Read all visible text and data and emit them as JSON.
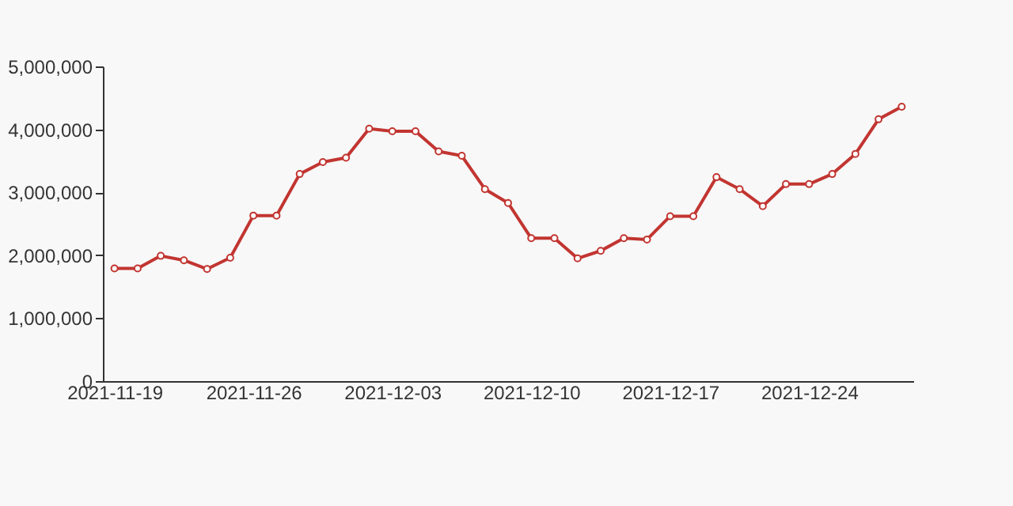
{
  "chart_data": {
    "type": "line",
    "categories": [
      "2021-11-19",
      null,
      null,
      null,
      null,
      null,
      "2021-11-26",
      null,
      null,
      null,
      null,
      null,
      "2021-12-03",
      null,
      null,
      null,
      null,
      null,
      "2021-12-10",
      null,
      null,
      null,
      null,
      null,
      "2021-12-17",
      null,
      null,
      null,
      null,
      null,
      "2021-12-24",
      null,
      null,
      null,
      null
    ],
    "series": [
      {
        "color": "#c23531",
        "values": [
          1790000,
          1790000,
          1990000,
          1920000,
          1780000,
          1960000,
          2630000,
          2630000,
          3290000,
          3480000,
          3550000,
          4010000,
          3970000,
          3970000,
          3650000,
          3580000,
          3050000,
          2830000,
          2270000,
          2270000,
          1950000,
          2070000,
          2270000,
          2250000,
          2620000,
          2620000,
          3240000,
          3050000,
          2780000,
          3130000,
          3130000,
          3290000,
          3610000,
          4160000,
          4360000
        ]
      }
    ],
    "ylim": [
      0,
      5000000
    ],
    "yticks": [
      0,
      {
        "value": 1000000,
        "label": "1,000,000"
      },
      {
        "value": 2000000,
        "label": "2,000,000"
      },
      {
        "value": 3000000,
        "label": "3,000,000"
      },
      {
        "value": 4000000,
        "label": "4,000,000"
      },
      {
        "value": 5000000,
        "label": "5,000,000"
      }
    ],
    "grid": false,
    "marker": "circle",
    "line_style": "solid"
  }
}
